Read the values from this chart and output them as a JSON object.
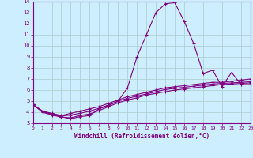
{
  "xlabel": "Windchill (Refroidissement éolien,°C)",
  "xlim": [
    0,
    23
  ],
  "ylim": [
    3,
    14
  ],
  "yticks": [
    3,
    4,
    5,
    6,
    7,
    8,
    9,
    10,
    11,
    12,
    13,
    14
  ],
  "xticks": [
    0,
    1,
    2,
    3,
    4,
    5,
    6,
    7,
    8,
    9,
    10,
    11,
    12,
    13,
    14,
    15,
    16,
    17,
    18,
    19,
    20,
    21,
    22,
    23
  ],
  "line_color": "#800080",
  "bg_color": "#cceeff",
  "grid_color": "#aacccc",
  "line1": [
    [
      0,
      4.7
    ],
    [
      1,
      4.1
    ],
    [
      2,
      3.8
    ],
    [
      3,
      3.6
    ],
    [
      4,
      3.4
    ],
    [
      5,
      3.6
    ],
    [
      6,
      3.7
    ],
    [
      7,
      4.3
    ],
    [
      8,
      4.6
    ],
    [
      9,
      5.0
    ],
    [
      10,
      6.2
    ],
    [
      11,
      9.0
    ],
    [
      12,
      11.0
    ],
    [
      13,
      13.0
    ],
    [
      14,
      13.8
    ],
    [
      15,
      13.9
    ],
    [
      16,
      12.2
    ],
    [
      17,
      10.2
    ],
    [
      18,
      7.5
    ],
    [
      19,
      7.8
    ],
    [
      20,
      6.3
    ],
    [
      21,
      7.6
    ],
    [
      22,
      6.5
    ],
    [
      23,
      6.5
    ]
  ],
  "line2": [
    [
      0,
      4.7
    ],
    [
      1,
      4.1
    ],
    [
      2,
      3.9
    ],
    [
      3,
      3.7
    ],
    [
      4,
      3.9
    ],
    [
      5,
      4.1
    ],
    [
      6,
      4.3
    ],
    [
      7,
      4.5
    ],
    [
      8,
      4.8
    ],
    [
      9,
      5.1
    ],
    [
      10,
      5.4
    ],
    [
      11,
      5.6
    ],
    [
      12,
      5.8
    ],
    [
      13,
      6.0
    ],
    [
      14,
      6.2
    ],
    [
      15,
      6.3
    ],
    [
      16,
      6.4
    ],
    [
      17,
      6.5
    ],
    [
      18,
      6.6
    ],
    [
      19,
      6.7
    ],
    [
      20,
      6.7
    ],
    [
      21,
      6.8
    ],
    [
      22,
      6.9
    ],
    [
      23,
      7.0
    ]
  ],
  "line3": [
    [
      0,
      4.7
    ],
    [
      1,
      4.0
    ],
    [
      2,
      3.75
    ],
    [
      3,
      3.55
    ],
    [
      4,
      3.5
    ],
    [
      5,
      3.7
    ],
    [
      6,
      3.85
    ],
    [
      7,
      4.15
    ],
    [
      8,
      4.5
    ],
    [
      9,
      4.85
    ],
    [
      10,
      5.1
    ],
    [
      11,
      5.3
    ],
    [
      12,
      5.55
    ],
    [
      13,
      5.7
    ],
    [
      14,
      5.85
    ],
    [
      15,
      6.0
    ],
    [
      16,
      6.1
    ],
    [
      17,
      6.2
    ],
    [
      18,
      6.3
    ],
    [
      19,
      6.4
    ],
    [
      20,
      6.5
    ],
    [
      21,
      6.55
    ],
    [
      22,
      6.6
    ],
    [
      23,
      6.65
    ]
  ],
  "line4": [
    [
      0,
      4.7
    ],
    [
      1,
      4.05
    ],
    [
      2,
      3.85
    ],
    [
      3,
      3.65
    ],
    [
      4,
      3.75
    ],
    [
      5,
      3.9
    ],
    [
      6,
      4.1
    ],
    [
      7,
      4.35
    ],
    [
      8,
      4.65
    ],
    [
      9,
      5.0
    ],
    [
      10,
      5.25
    ],
    [
      11,
      5.45
    ],
    [
      12,
      5.65
    ],
    [
      13,
      5.85
    ],
    [
      14,
      6.05
    ],
    [
      15,
      6.15
    ],
    [
      16,
      6.25
    ],
    [
      17,
      6.35
    ],
    [
      18,
      6.45
    ],
    [
      19,
      6.55
    ],
    [
      20,
      6.6
    ],
    [
      21,
      6.65
    ],
    [
      22,
      6.7
    ],
    [
      23,
      6.75
    ]
  ]
}
